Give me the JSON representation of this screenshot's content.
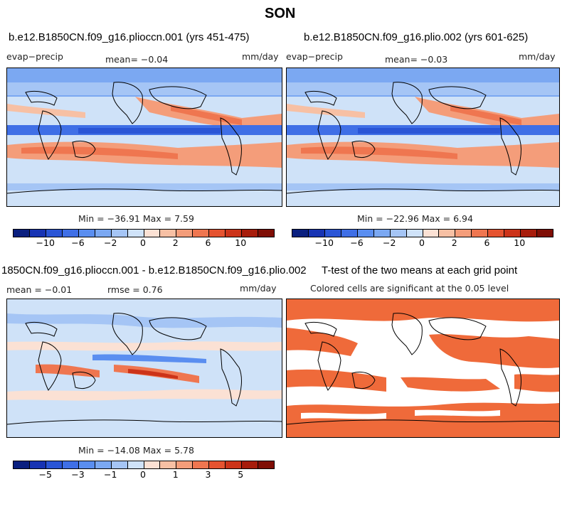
{
  "figure": {
    "season": "SON"
  },
  "panels": {
    "p1": {
      "title": "b.e12.B1850CN.f09_g16.plioccn.001 (yrs 451-475)",
      "variable": "evap−precip",
      "mean": "mean=  −0.04",
      "units": "mm/day",
      "minmax": "Min = −36.91  Max =   7.59"
    },
    "p2": {
      "title": "b.e12.B1850CN.f09_g16.plio.002 (yrs 601-625)",
      "variable": "evap−precip",
      "mean": "mean=  −0.03",
      "units": "mm/day",
      "minmax": "Min = −22.96  Max =   6.94"
    },
    "p3": {
      "title": "1850CN.f09_g16.plioccn.001 - b.e12.B1850CN.f09_g16.plio.002",
      "mean": "mean =  −0.01",
      "rmse": "rmse =    0.76",
      "units": "mm/day",
      "minmax": "Min = −14.08  Max =   5.78"
    },
    "p4": {
      "title": "T-test of the two means at each grid point",
      "subtitle": "Colored cells are significant at the 0.05 level"
    }
  },
  "colorbar_main": {
    "colors": [
      "#0a1f7f",
      "#1733b3",
      "#2a55d6",
      "#3f6fe6",
      "#5a8ef0",
      "#7ba8f2",
      "#a5c5f5",
      "#cfe2f8",
      "#fbe1d4",
      "#f7c0a4",
      "#f49d7a",
      "#ef7650",
      "#e55330",
      "#cc3319",
      "#a71c0b",
      "#7f0e05"
    ],
    "tick_labels": [
      "−10",
      "−6",
      "−2",
      "0",
      "2",
      "6",
      "10"
    ]
  },
  "colorbar_diff": {
    "colors": [
      "#0a1f7f",
      "#1733b3",
      "#2a55d6",
      "#3f6fe6",
      "#5a8ef0",
      "#7ba8f2",
      "#a5c5f5",
      "#cfe2f8",
      "#fbe1d4",
      "#f7c0a4",
      "#f49d7a",
      "#ef7650",
      "#e55330",
      "#cc3319",
      "#a71c0b",
      "#7f0e05"
    ],
    "tick_labels": [
      "−5",
      "−3",
      "−1",
      "0",
      "1",
      "3",
      "5"
    ]
  },
  "colors": {
    "ttest_fill": "#ef6a3a",
    "ocean_light": "#cfe2f8",
    "blue_band": "#3f6fe6",
    "orange_band": "#ef7650"
  }
}
